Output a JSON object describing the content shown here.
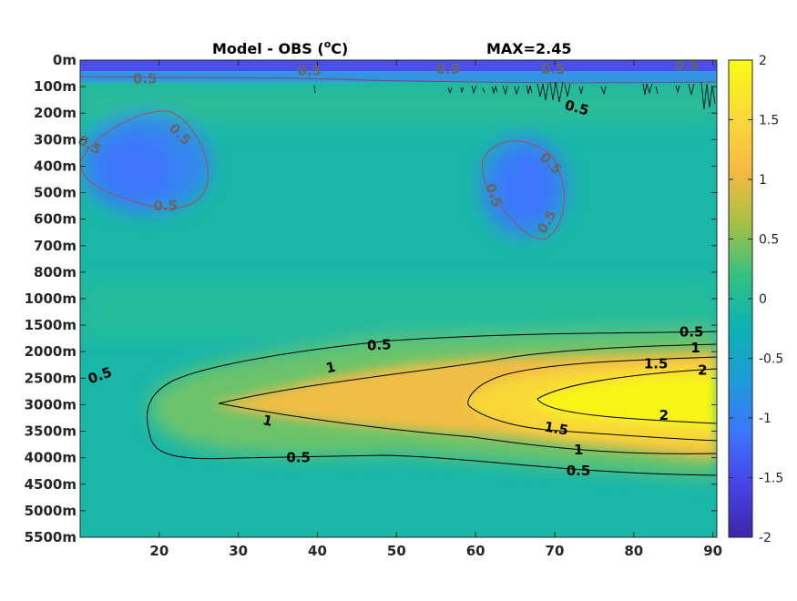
{
  "chart_data": {
    "type": "heatmap",
    "title_left": "Model - OBS (",
    "title_deg": "o",
    "title_right": "C)",
    "title_max": "MAX=2.45",
    "x_ticks": [
      20,
      30,
      40,
      50,
      60,
      70,
      80,
      90
    ],
    "xlim": [
      10,
      90.5
    ],
    "y_ticks": [
      "0m",
      "100m",
      "200m",
      "300m",
      "400m",
      "500m",
      "600m",
      "700m",
      "800m",
      "1000m",
      "1500m",
      "2000m",
      "2500m",
      "3000m",
      "3500m",
      "4000m",
      "4500m",
      "5000m",
      "5500m"
    ],
    "colorbar": {
      "ticks": [
        "2",
        "1.5",
        "1",
        "0.5",
        "0",
        "-0.5",
        "-1",
        "-1.5",
        "-2"
      ],
      "range": [
        -2,
        2
      ],
      "colors": [
        "#3e26a8",
        "#4744e8",
        "#3c75fd",
        "#1e9cd7",
        "#0bb3b4",
        "#35c17f",
        "#a8c043",
        "#f8ba43",
        "#f9d93a",
        "#f9fb15"
      ]
    },
    "contour_labels": [
      {
        "text": "0.5",
        "x": 47.8,
        "y": 10.75,
        "angle": -3,
        "color": "#000"
      },
      {
        "text": "0.5",
        "x": 87.3,
        "y": 10.25,
        "angle": 0,
        "color": "#000"
      },
      {
        "text": "1",
        "x": 87.8,
        "y": 10.85,
        "angle": 0,
        "color": "#000"
      },
      {
        "text": "1.5",
        "x": 82.8,
        "y": 11.45,
        "angle": 0,
        "color": "#000"
      },
      {
        "text": "2",
        "x": 88.7,
        "y": 11.7,
        "angle": 0,
        "color": "#000"
      },
      {
        "text": "0.5",
        "x": 12.5,
        "y": 11.9,
        "angle": -20,
        "color": "#000"
      },
      {
        "text": "1",
        "x": 41.7,
        "y": 11.6,
        "angle": -12,
        "color": "#000"
      },
      {
        "text": "1",
        "x": 33.7,
        "y": 13.6,
        "angle": 12,
        "color": "#000"
      },
      {
        "text": "2",
        "x": 83.8,
        "y": 13.4,
        "angle": 0,
        "color": "#000"
      },
      {
        "text": "1.5",
        "x": 70.2,
        "y": 13.9,
        "angle": 10,
        "color": "#000"
      },
      {
        "text": "1",
        "x": 73,
        "y": 14.7,
        "angle": 0,
        "color": "#000"
      },
      {
        "text": "0.5",
        "x": 37.6,
        "y": 15,
        "angle": 0,
        "color": "#000"
      },
      {
        "text": "0.5",
        "x": 73,
        "y": 15.5,
        "angle": 0,
        "color": "#000"
      },
      {
        "text": "0.5",
        "x": 22.6,
        "y": 2.8,
        "angle": 45,
        "color": "#666"
      },
      {
        "text": "0.5",
        "x": 11.2,
        "y": 3.2,
        "angle": 30,
        "color": "#666"
      },
      {
        "text": "0.5",
        "x": 20.8,
        "y": 5.5,
        "angle": 0,
        "color": "#666"
      },
      {
        "text": "0.5",
        "x": 69.5,
        "y": 3.9,
        "angle": 45,
        "color": "#666"
      },
      {
        "text": "0.5",
        "x": 62.3,
        "y": 5.1,
        "angle": 70,
        "color": "#666"
      },
      {
        "text": "0.5",
        "x": 69,
        "y": 6.1,
        "angle": -60,
        "color": "#666"
      },
      {
        "text": "0.5",
        "x": 72.8,
        "y": 1.8,
        "angle": 15,
        "color": "#000"
      },
      {
        "text": "0.5",
        "x": 18.2,
        "y": 0.7,
        "angle": 0,
        "color": "#666"
      },
      {
        "text": "0.5",
        "x": 39,
        "y": 0.4,
        "angle": 0,
        "color": "#666"
      },
      {
        "text": "0.5",
        "x": 56.5,
        "y": 0.35,
        "angle": 0,
        "color": "#666"
      },
      {
        "text": "0.5",
        "x": 69.8,
        "y": 0.35,
        "angle": 0,
        "color": "#666"
      },
      {
        "text": "0.5",
        "x": 86.7,
        "y": 0.2,
        "angle": 0,
        "color": "#666"
      }
    ]
  }
}
